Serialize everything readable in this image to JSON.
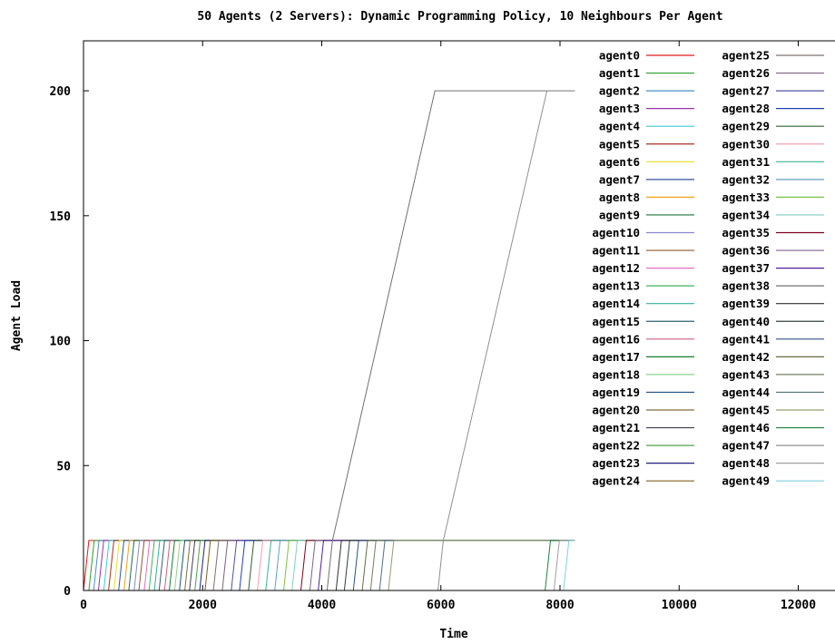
{
  "chart_data": {
    "type": "line",
    "title": "50 Agents (2 Servers): Dynamic Programming Policy, 10 Neighbours Per Agent",
    "xlabel": "Time",
    "ylabel": "Agent Load",
    "xlim": [
      0,
      12800
    ],
    "ylim": [
      0,
      220
    ],
    "xticks": [
      "0",
      "2000",
      "4000",
      "6000",
      "8000",
      "10000",
      "12000"
    ],
    "yticks": [
      "0",
      "50",
      "100",
      "150",
      "200"
    ],
    "grid": false,
    "legend_position": "top-right",
    "series": [
      {
        "name": "agent0",
        "color": "#e41a1c",
        "x": [
          0,
          90,
          8250
        ],
        "y": [
          0,
          20,
          20
        ]
      },
      {
        "name": "agent1",
        "color": "#2ca02c",
        "x": [
          90,
          180,
          8250
        ],
        "y": [
          0,
          20,
          20
        ]
      },
      {
        "name": "agent2",
        "color": "#4a8fc4",
        "x": [
          170,
          260,
          8250
        ],
        "y": [
          0,
          20,
          20
        ]
      },
      {
        "name": "agent3",
        "color": "#9b30b0",
        "x": [
          250,
          340,
          8250
        ],
        "y": [
          0,
          20,
          20
        ]
      },
      {
        "name": "agent4",
        "color": "#40c8d8",
        "x": [
          340,
          430,
          8250
        ],
        "y": [
          0,
          20,
          20
        ]
      },
      {
        "name": "agent5",
        "color": "#a83220",
        "x": [
          420,
          510,
          8250
        ],
        "y": [
          0,
          20,
          20
        ]
      },
      {
        "name": "agent6",
        "color": "#e8e020",
        "x": [
          510,
          600,
          8250
        ],
        "y": [
          0,
          20,
          20
        ]
      },
      {
        "name": "agent7",
        "color": "#3050a0",
        "x": [
          590,
          680,
          8250
        ],
        "y": [
          0,
          20,
          20
        ]
      },
      {
        "name": "agent8",
        "color": "#f0a020",
        "x": [
          680,
          770,
          8250
        ],
        "y": [
          0,
          20,
          20
        ]
      },
      {
        "name": "agent9",
        "color": "#207040",
        "x": [
          760,
          850,
          8250
        ],
        "y": [
          0,
          20,
          20
        ]
      },
      {
        "name": "agent10",
        "color": "#8888cc",
        "x": [
          850,
          940,
          8250
        ],
        "y": [
          0,
          20,
          20
        ]
      },
      {
        "name": "agent11",
        "color": "#8a5a30",
        "x": [
          930,
          1020,
          8250
        ],
        "y": [
          0,
          20,
          20
        ]
      },
      {
        "name": "agent12",
        "color": "#e070c0",
        "x": [
          1020,
          1110,
          8250
        ],
        "y": [
          0,
          20,
          20
        ]
      },
      {
        "name": "agent13",
        "color": "#40b060",
        "x": [
          1100,
          1190,
          8250
        ],
        "y": [
          0,
          20,
          20
        ]
      },
      {
        "name": "agent14",
        "color": "#30b0a0",
        "x": [
          1190,
          1280,
          8250
        ],
        "y": [
          0,
          20,
          20
        ]
      },
      {
        "name": "agent15",
        "color": "#306070",
        "x": [
          1270,
          1360,
          8250
        ],
        "y": [
          0,
          20,
          20
        ]
      },
      {
        "name": "agent16",
        "color": "#d06080",
        "x": [
          1360,
          1450,
          8250
        ],
        "y": [
          0,
          20,
          20
        ]
      },
      {
        "name": "agent17",
        "color": "#108030",
        "x": [
          1440,
          1530,
          8250
        ],
        "y": [
          0,
          20,
          20
        ]
      },
      {
        "name": "agent18",
        "color": "#90d090",
        "x": [
          1530,
          1620,
          8250
        ],
        "y": [
          0,
          20,
          20
        ]
      },
      {
        "name": "agent19",
        "color": "#205080",
        "x": [
          1610,
          1700,
          8250
        ],
        "y": [
          0,
          20,
          20
        ]
      },
      {
        "name": "agent20",
        "color": "#807040",
        "x": [
          1700,
          1790,
          8250
        ],
        "y": [
          0,
          20,
          20
        ]
      },
      {
        "name": "agent21",
        "color": "#404050",
        "x": [
          1780,
          1870,
          8250
        ],
        "y": [
          0,
          20,
          20
        ]
      },
      {
        "name": "agent22",
        "color": "#50a050",
        "x": [
          1870,
          1960,
          8250
        ],
        "y": [
          0,
          20,
          20
        ]
      },
      {
        "name": "agent23",
        "color": "#202080",
        "x": [
          1950,
          2040,
          8250
        ],
        "y": [
          0,
          20,
          20
        ]
      },
      {
        "name": "agent24",
        "color": "#806020",
        "x": [
          2040,
          2130,
          8250
        ],
        "y": [
          0,
          20,
          20
        ]
      },
      {
        "name": "agent25",
        "color": "#807070",
        "x": [
          2180,
          2270,
          8250
        ],
        "y": [
          0,
          20,
          20
        ]
      },
      {
        "name": "agent26",
        "color": "#806080",
        "x": [
          2330,
          2420,
          8250
        ],
        "y": [
          0,
          20,
          20
        ]
      },
      {
        "name": "agent27",
        "color": "#5050a0",
        "x": [
          2480,
          2570,
          8250
        ],
        "y": [
          0,
          20,
          20
        ]
      },
      {
        "name": "agent28",
        "color": "#2040b0",
        "x": [
          2620,
          2710,
          8250
        ],
        "y": [
          0,
          20,
          20
        ]
      },
      {
        "name": "agent29",
        "color": "#306030",
        "x": [
          2770,
          2860,
          8250
        ],
        "y": [
          0,
          20,
          20
        ]
      },
      {
        "name": "agent30",
        "color": "#f0a0b0",
        "x": [
          2920,
          3010,
          8250
        ],
        "y": [
          0,
          20,
          20
        ]
      },
      {
        "name": "agent31",
        "color": "#40b090",
        "x": [
          3060,
          3150,
          8250
        ],
        "y": [
          0,
          20,
          20
        ]
      },
      {
        "name": "agent32",
        "color": "#60a0c0",
        "x": [
          3210,
          3300,
          8250
        ],
        "y": [
          0,
          20,
          20
        ]
      },
      {
        "name": "agent33",
        "color": "#80c040",
        "x": [
          3360,
          3450,
          8250
        ],
        "y": [
          0,
          20,
          20
        ]
      },
      {
        "name": "agent34",
        "color": "#80d0c0",
        "x": [
          3500,
          3590,
          8250
        ],
        "y": [
          0,
          20,
          20
        ]
      },
      {
        "name": "agent35",
        "color": "#800020",
        "x": [
          3650,
          3740,
          8250
        ],
        "y": [
          0,
          20,
          20
        ]
      },
      {
        "name": "agent36",
        "color": "#806090",
        "x": [
          3800,
          3890,
          8250
        ],
        "y": [
          0,
          20,
          20
        ]
      },
      {
        "name": "agent37",
        "color": "#5020a0",
        "x": [
          3940,
          4030,
          8250
        ],
        "y": [
          0,
          20,
          20
        ]
      },
      {
        "name": "agent38",
        "color": "#707070",
        "x": [
          4090,
          4180,
          5900,
          8250
        ],
        "y": [
          0,
          20,
          200,
          200
        ]
      },
      {
        "name": "agent39",
        "color": "#303030",
        "x": [
          4240,
          4330,
          8250
        ],
        "y": [
          0,
          20,
          20
        ]
      },
      {
        "name": "agent40",
        "color": "#304040",
        "x": [
          4380,
          4470,
          8250
        ],
        "y": [
          0,
          20,
          20
        ]
      },
      {
        "name": "agent41",
        "color": "#305080",
        "x": [
          4530,
          4620,
          8250
        ],
        "y": [
          0,
          20,
          20
        ]
      },
      {
        "name": "agent42",
        "color": "#607040",
        "x": [
          4680,
          4770,
          8250
        ],
        "y": [
          0,
          20,
          20
        ]
      },
      {
        "name": "agent43",
        "color": "#708060",
        "x": [
          4820,
          4910,
          8250
        ],
        "y": [
          0,
          20,
          20
        ]
      },
      {
        "name": "agent44",
        "color": "#507080",
        "x": [
          4970,
          5060,
          8250
        ],
        "y": [
          0,
          20,
          20
        ]
      },
      {
        "name": "agent45",
        "color": "#90a070",
        "x": [
          5120,
          5210,
          8250
        ],
        "y": [
          0,
          20,
          20
        ]
      },
      {
        "name": "agent46",
        "color": "#208040",
        "x": [
          7750,
          7840,
          8250
        ],
        "y": [
          0,
          20,
          20
        ]
      },
      {
        "name": "agent47",
        "color": "#909090",
        "x": [
          5950,
          6040,
          7780,
          8250
        ],
        "y": [
          0,
          20,
          200,
          200
        ]
      },
      {
        "name": "agent48",
        "color": "#a0a0a0",
        "x": [
          7900,
          7990,
          8250
        ],
        "y": [
          0,
          20,
          20
        ]
      },
      {
        "name": "agent49",
        "color": "#80d0e0",
        "x": [
          8060,
          8150,
          8250
        ],
        "y": [
          0,
          20,
          20
        ]
      }
    ]
  }
}
